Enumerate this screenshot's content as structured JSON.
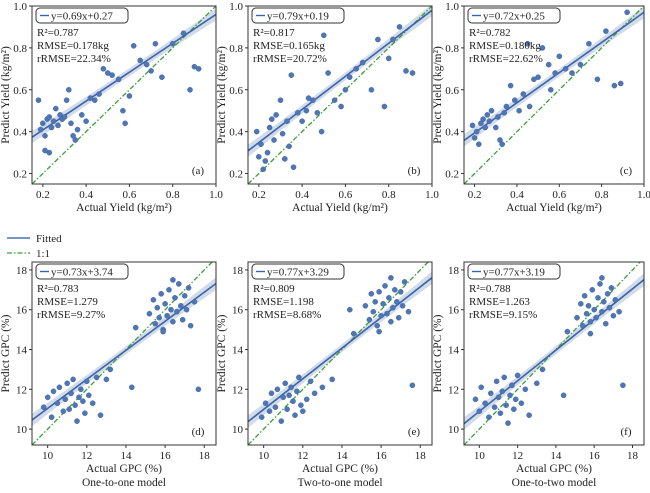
{
  "legend": {
    "fitted_label": "Fitted",
    "one_to_one_label": "1:1",
    "fitted_color": "#4a72b0",
    "one_to_one_color": "#3aa13a"
  },
  "colors": {
    "point": "#4f76b4",
    "line": "#3d63a8",
    "band": "#b9c7dd",
    "identity": "#39a039",
    "frame": "#333333"
  },
  "chart_data": [
    {
      "type": "scatter",
      "panel": "(a)",
      "equation": "y=0.69x+0.27",
      "r2": "R²=0.787",
      "rmse": "RMSE=0.178kg",
      "rrmse": "rRMSE=22.34%",
      "xlabel": "Actual Yield (kg/m²)",
      "ylabel": "Predict Yield (kg/m²)",
      "caption": "",
      "xlim": [
        0.15,
        1.0
      ],
      "ylim": [
        0.15,
        1.0
      ],
      "xticks": [
        "0.2",
        "0.4",
        "0.6",
        "0.8",
        "1.0"
      ],
      "xtickvals": [
        0.2,
        0.4,
        0.6,
        0.8,
        1.0
      ],
      "yticks": [
        "0.2",
        "0.4",
        "0.6",
        "0.8",
        "1.0"
      ],
      "ytickvals": [
        0.2,
        0.4,
        0.6,
        0.8,
        1.0
      ],
      "fit": {
        "slope": 0.69,
        "intercept": 0.27
      },
      "points": [
        [
          0.18,
          0.55
        ],
        [
          0.19,
          0.41
        ],
        [
          0.2,
          0.44
        ],
        [
          0.21,
          0.38
        ],
        [
          0.21,
          0.31
        ],
        [
          0.22,
          0.46
        ],
        [
          0.23,
          0.47
        ],
        [
          0.23,
          0.3
        ],
        [
          0.24,
          0.42
        ],
        [
          0.25,
          0.45
        ],
        [
          0.26,
          0.51
        ],
        [
          0.27,
          0.43
        ],
        [
          0.28,
          0.48
        ],
        [
          0.29,
          0.46
        ],
        [
          0.3,
          0.47
        ],
        [
          0.31,
          0.55
        ],
        [
          0.32,
          0.6
        ],
        [
          0.33,
          0.44
        ],
        [
          0.34,
          0.38
        ],
        [
          0.35,
          0.36
        ],
        [
          0.36,
          0.41
        ],
        [
          0.38,
          0.48
        ],
        [
          0.4,
          0.45
        ],
        [
          0.42,
          0.56
        ],
        [
          0.44,
          0.55
        ],
        [
          0.46,
          0.58
        ],
        [
          0.48,
          0.7
        ],
        [
          0.5,
          0.68
        ],
        [
          0.52,
          0.67
        ],
        [
          0.55,
          0.65
        ],
        [
          0.58,
          0.44
        ],
        [
          0.6,
          0.57
        ],
        [
          0.62,
          0.81
        ],
        [
          0.65,
          0.74
        ],
        [
          0.68,
          0.72
        ],
        [
          0.7,
          0.69
        ],
        [
          0.72,
          0.82
        ],
        [
          0.75,
          0.66
        ],
        [
          0.8,
          0.82
        ],
        [
          0.85,
          0.87
        ],
        [
          0.88,
          0.6
        ],
        [
          0.9,
          0.71
        ],
        [
          0.92,
          0.7
        ],
        [
          0.57,
          0.5
        ]
      ]
    },
    {
      "type": "scatter",
      "panel": "(b)",
      "equation": "y=0.79x+0.19",
      "r2": "R²=0.817",
      "rmse": "RMSE=0.165kg",
      "rrmse": "rRMSE=20.72%",
      "xlabel": "Actual Yield (kg/m²)",
      "ylabel": "Predict Yield (kg/m²)",
      "caption": "",
      "xlim": [
        0.15,
        1.0
      ],
      "ylim": [
        0.15,
        1.0
      ],
      "xticks": [
        "0.2",
        "0.4",
        "0.6",
        "0.8",
        "1.0"
      ],
      "xtickvals": [
        0.2,
        0.4,
        0.6,
        0.8,
        1.0
      ],
      "yticks": [
        "0.2",
        "0.4",
        "0.6",
        "0.8",
        "1.0"
      ],
      "ytickvals": [
        0.2,
        0.4,
        0.6,
        0.8,
        1.0
      ],
      "fit": {
        "slope": 0.79,
        "intercept": 0.19
      },
      "points": [
        [
          0.19,
          0.4
        ],
        [
          0.2,
          0.28
        ],
        [
          0.21,
          0.34
        ],
        [
          0.22,
          0.22
        ],
        [
          0.23,
          0.26
        ],
        [
          0.24,
          0.3
        ],
        [
          0.25,
          0.42
        ],
        [
          0.26,
          0.46
        ],
        [
          0.27,
          0.36
        ],
        [
          0.28,
          0.48
        ],
        [
          0.3,
          0.55
        ],
        [
          0.31,
          0.39
        ],
        [
          0.32,
          0.27
        ],
        [
          0.33,
          0.45
        ],
        [
          0.34,
          0.33
        ],
        [
          0.35,
          0.67
        ],
        [
          0.36,
          0.23
        ],
        [
          0.38,
          0.49
        ],
        [
          0.4,
          0.45
        ],
        [
          0.42,
          0.5
        ],
        [
          0.45,
          0.55
        ],
        [
          0.47,
          0.49
        ],
        [
          0.5,
          0.86
        ],
        [
          0.52,
          0.68
        ],
        [
          0.55,
          0.55
        ],
        [
          0.58,
          0.52
        ],
        [
          0.6,
          0.6
        ],
        [
          0.62,
          0.66
        ],
        [
          0.65,
          0.7
        ],
        [
          0.68,
          0.73
        ],
        [
          0.72,
          0.6
        ],
        [
          0.75,
          0.84
        ],
        [
          0.78,
          0.52
        ],
        [
          0.8,
          0.75
        ],
        [
          0.82,
          0.84
        ],
        [
          0.85,
          0.9
        ],
        [
          0.88,
          0.69
        ],
        [
          0.91,
          0.68
        ],
        [
          0.49,
          0.4
        ],
        [
          0.43,
          0.56
        ]
      ]
    },
    {
      "type": "scatter",
      "panel": "(c)",
      "equation": "y=0.72x+0.25",
      "r2": "R²=0.782",
      "rmse": "RMSE=0.180kg",
      "rrmse": "rRMSE=22.62%",
      "xlabel": "Actual Yield (kg/m²)",
      "ylabel": "Predict Yield (kg/m²)",
      "caption": "",
      "xlim": [
        0.15,
        1.0
      ],
      "ylim": [
        0.15,
        1.0
      ],
      "xticks": [
        "0.2",
        "0.4",
        "0.6",
        "0.8",
        "1.0"
      ],
      "xtickvals": [
        0.2,
        0.4,
        0.6,
        0.8,
        1.0
      ],
      "yticks": [
        "0.2",
        "0.4",
        "0.6",
        "0.8",
        "1.0"
      ],
      "ytickvals": [
        0.2,
        0.4,
        0.6,
        0.8,
        1.0
      ],
      "fit": {
        "slope": 0.72,
        "intercept": 0.25
      },
      "points": [
        [
          0.19,
          0.43
        ],
        [
          0.2,
          0.37
        ],
        [
          0.21,
          0.4
        ],
        [
          0.22,
          0.34
        ],
        [
          0.23,
          0.44
        ],
        [
          0.24,
          0.46
        ],
        [
          0.25,
          0.42
        ],
        [
          0.26,
          0.48
        ],
        [
          0.27,
          0.45
        ],
        [
          0.28,
          0.5
        ],
        [
          0.3,
          0.42
        ],
        [
          0.31,
          0.47
        ],
        [
          0.32,
          0.36
        ],
        [
          0.33,
          0.34
        ],
        [
          0.34,
          0.49
        ],
        [
          0.35,
          0.52
        ],
        [
          0.37,
          0.62
        ],
        [
          0.39,
          0.55
        ],
        [
          0.41,
          0.5
        ],
        [
          0.43,
          0.58
        ],
        [
          0.46,
          0.52
        ],
        [
          0.48,
          0.65
        ],
        [
          0.5,
          0.66
        ],
        [
          0.52,
          0.8
        ],
        [
          0.55,
          0.72
        ],
        [
          0.58,
          0.68
        ],
        [
          0.6,
          0.76
        ],
        [
          0.63,
          0.7
        ],
        [
          0.66,
          0.68
        ],
        [
          0.7,
          0.72
        ],
        [
          0.74,
          0.82
        ],
        [
          0.78,
          0.65
        ],
        [
          0.82,
          0.88
        ],
        [
          0.86,
          0.62
        ],
        [
          0.89,
          0.63
        ],
        [
          0.92,
          0.97
        ],
        [
          0.56,
          0.6
        ],
        [
          0.45,
          0.82
        ]
      ]
    },
    {
      "type": "scatter",
      "panel": "(d)",
      "equation": "y=0.73x+3.74",
      "r2": "R²=0.783",
      "rmse": "RMSE=1.279",
      "rrmse": "rRMSE=9.27%",
      "xlabel": "Actual GPC (%)",
      "ylabel": "Predict GPC (%)",
      "caption": "One-to-one model",
      "xlim": [
        9.2,
        18.6
      ],
      "ylim": [
        9.2,
        18.4
      ],
      "xticks": [
        "10",
        "12",
        "14",
        "16",
        "18"
      ],
      "xtickvals": [
        10,
        12,
        14,
        16,
        18
      ],
      "yticks": [
        "10",
        "12",
        "14",
        "16",
        "18"
      ],
      "ytickvals": [
        10,
        12,
        14,
        16,
        18
      ],
      "fit": {
        "slope": 0.73,
        "intercept": 3.74
      },
      "points": [
        [
          9.8,
          11.1
        ],
        [
          10.0,
          11.6
        ],
        [
          10.2,
          10.6
        ],
        [
          10.3,
          11.9
        ],
        [
          10.5,
          11.3
        ],
        [
          10.6,
          12.1
        ],
        [
          10.8,
          10.9
        ],
        [
          10.9,
          11.5
        ],
        [
          11.0,
          12.3
        ],
        [
          11.1,
          11.0
        ],
        [
          11.2,
          11.8
        ],
        [
          11.3,
          12.5
        ],
        [
          11.4,
          11.2
        ],
        [
          11.5,
          10.4
        ],
        [
          11.6,
          11.6
        ],
        [
          11.7,
          12.0
        ],
        [
          11.8,
          11.4
        ],
        [
          11.9,
          10.8
        ],
        [
          12.0,
          12.4
        ],
        [
          12.1,
          11.7
        ],
        [
          12.3,
          11.3
        ],
        [
          12.5,
          12.6
        ],
        [
          12.7,
          10.7
        ],
        [
          13.0,
          12.5
        ],
        [
          13.2,
          13.0
        ],
        [
          14.3,
          12.1
        ],
        [
          14.5,
          15.1
        ],
        [
          15.2,
          15.8
        ],
        [
          15.4,
          16.5
        ],
        [
          15.5,
          15.3
        ],
        [
          15.6,
          16.1
        ],
        [
          15.7,
          15.6
        ],
        [
          15.8,
          16.8
        ],
        [
          15.9,
          15.0
        ],
        [
          16.0,
          16.3
        ],
        [
          16.1,
          15.7
        ],
        [
          16.2,
          17.0
        ],
        [
          16.3,
          16.0
        ],
        [
          16.4,
          15.4
        ],
        [
          16.5,
          16.6
        ],
        [
          16.6,
          15.9
        ],
        [
          16.7,
          17.3
        ],
        [
          16.8,
          16.2
        ],
        [
          16.9,
          15.5
        ],
        [
          17.0,
          16.7
        ],
        [
          17.1,
          16.0
        ],
        [
          17.2,
          17.1
        ],
        [
          17.3,
          15.2
        ],
        [
          17.5,
          16.4
        ],
        [
          17.7,
          12.0
        ],
        [
          16.4,
          17.5
        ],
        [
          15.9,
          14.9
        ]
      ]
    },
    {
      "type": "scatter",
      "panel": "(e)",
      "equation": "y=0.77x+3.29",
      "r2": "R²=0.809",
      "rmse": "RMSE=1.198",
      "rrmse": "rRMSE=8.68%",
      "xlabel": "Actual GPC (%)",
      "ylabel": "Predict GPC (%)",
      "caption": "Two-to-one model",
      "xlim": [
        9.2,
        18.6
      ],
      "ylim": [
        9.2,
        18.4
      ],
      "xticks": [
        "10",
        "12",
        "14",
        "16",
        "18"
      ],
      "xtickvals": [
        10,
        12,
        14,
        16,
        18
      ],
      "yticks": [
        "10",
        "12",
        "14",
        "16",
        "18"
      ],
      "ytickvals": [
        10,
        12,
        14,
        16,
        18
      ],
      "fit": {
        "slope": 0.77,
        "intercept": 3.29
      },
      "points": [
        [
          9.9,
          10.6
        ],
        [
          10.1,
          11.3
        ],
        [
          10.3,
          10.9
        ],
        [
          10.4,
          11.8
        ],
        [
          10.6,
          11.1
        ],
        [
          10.7,
          12.0
        ],
        [
          10.9,
          10.4
        ],
        [
          11.0,
          11.6
        ],
        [
          11.1,
          12.3
        ],
        [
          11.2,
          11.0
        ],
        [
          11.3,
          11.7
        ],
        [
          11.4,
          12.1
        ],
        [
          11.5,
          11.4
        ],
        [
          11.6,
          10.7
        ],
        [
          11.7,
          11.9
        ],
        [
          11.8,
          12.6
        ],
        [
          11.9,
          11.2
        ],
        [
          12.0,
          10.9
        ],
        [
          12.2,
          11.5
        ],
        [
          12.4,
          12.4
        ],
        [
          12.6,
          11.8
        ],
        [
          13.0,
          12.1
        ],
        [
          13.5,
          12.5
        ],
        [
          14.4,
          16.0
        ],
        [
          14.6,
          14.8
        ],
        [
          15.2,
          16.2
        ],
        [
          15.4,
          15.5
        ],
        [
          15.5,
          16.8
        ],
        [
          15.6,
          15.9
        ],
        [
          15.7,
          16.4
        ],
        [
          15.8,
          15.2
        ],
        [
          15.9,
          16.9
        ],
        [
          16.0,
          15.7
        ],
        [
          16.1,
          16.3
        ],
        [
          16.2,
          17.2
        ],
        [
          16.3,
          15.8
        ],
        [
          16.4,
          16.6
        ],
        [
          16.5,
          15.4
        ],
        [
          16.6,
          16.1
        ],
        [
          16.7,
          17.0
        ],
        [
          16.8,
          16.4
        ],
        [
          16.9,
          15.6
        ],
        [
          17.0,
          16.9
        ],
        [
          17.1,
          16.2
        ],
        [
          17.2,
          17.4
        ],
        [
          17.4,
          15.9
        ],
        [
          17.6,
          12.2
        ],
        [
          16.5,
          17.6
        ],
        [
          15.9,
          14.9
        ]
      ]
    },
    {
      "type": "scatter",
      "panel": "(f)",
      "equation": "y=0.77x+3.19",
      "r2": "R²=0.788",
      "rmse": "RMSE=1.263",
      "rrmse": "rRMSE=9.15%",
      "xlabel": "Actual GPC (%)",
      "ylabel": "Predict GPC (%)",
      "caption": "One-to-two model",
      "xlim": [
        9.2,
        18.6
      ],
      "ylim": [
        9.2,
        18.4
      ],
      "xticks": [
        "10",
        "12",
        "14",
        "16",
        "18"
      ],
      "xtickvals": [
        10,
        12,
        14,
        16,
        18
      ],
      "yticks": [
        "10",
        "12",
        "14",
        "16",
        "18"
      ],
      "ytickvals": [
        10,
        12,
        14,
        16,
        18
      ],
      "fit": {
        "slope": 0.77,
        "intercept": 3.19
      },
      "points": [
        [
          9.8,
          11.5
        ],
        [
          10.0,
          10.9
        ],
        [
          10.1,
          12.1
        ],
        [
          10.3,
          11.3
        ],
        [
          10.5,
          10.6
        ],
        [
          10.6,
          11.8
        ],
        [
          10.8,
          11.1
        ],
        [
          10.9,
          12.4
        ],
        [
          11.0,
          11.6
        ],
        [
          11.1,
          10.8
        ],
        [
          11.2,
          11.9
        ],
        [
          11.3,
          12.6
        ],
        [
          11.4,
          11.2
        ],
        [
          11.5,
          10.3
        ],
        [
          11.6,
          11.7
        ],
        [
          11.7,
          12.2
        ],
        [
          11.8,
          11.0
        ],
        [
          11.9,
          11.5
        ],
        [
          12.0,
          12.7
        ],
        [
          12.2,
          11.3
        ],
        [
          12.4,
          12.0
        ],
        [
          12.6,
          10.7
        ],
        [
          13.0,
          12.3
        ],
        [
          13.3,
          13.0
        ],
        [
          14.4,
          11.7
        ],
        [
          14.6,
          14.9
        ],
        [
          15.1,
          15.6
        ],
        [
          15.3,
          16.3
        ],
        [
          15.4,
          15.2
        ],
        [
          15.5,
          16.7
        ],
        [
          15.6,
          15.8
        ],
        [
          15.7,
          16.2
        ],
        [
          15.8,
          15.4
        ],
        [
          15.9,
          17.0
        ],
        [
          16.0,
          16.0
        ],
        [
          16.1,
          15.6
        ],
        [
          16.2,
          16.6
        ],
        [
          16.3,
          17.3
        ],
        [
          16.4,
          15.9
        ],
        [
          16.5,
          16.4
        ],
        [
          16.6,
          15.3
        ],
        [
          16.7,
          16.8
        ],
        [
          16.8,
          16.1
        ],
        [
          16.9,
          17.1
        ],
        [
          17.0,
          15.7
        ],
        [
          17.1,
          16.5
        ],
        [
          17.3,
          15.9
        ],
        [
          17.5,
          12.2
        ],
        [
          16.4,
          17.6
        ],
        [
          15.8,
          14.8
        ]
      ]
    }
  ]
}
